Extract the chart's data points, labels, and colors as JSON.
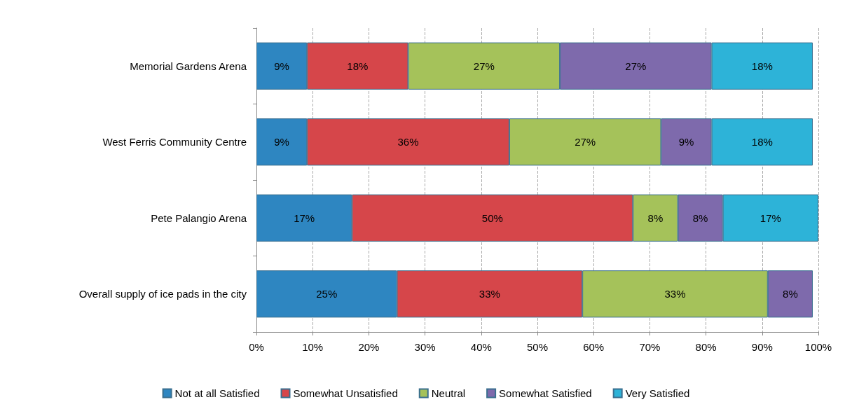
{
  "chart_data": {
    "type": "bar",
    "orientation": "horizontal",
    "stacked": true,
    "categories": [
      "Memorial Gardens Arena",
      "West Ferris Community Centre",
      "Pete Palangio Arena",
      "Overall supply of ice pads in the city"
    ],
    "series": [
      {
        "name": "Not at all Satisfied",
        "color": "#2e86c1",
        "values": [
          9,
          9,
          17,
          25
        ],
        "value_labels": [
          "9%",
          "9%",
          "17%",
          "25%"
        ]
      },
      {
        "name": "Somewhat Unsatisfied",
        "color": "#d6464a",
        "values": [
          18,
          36,
          50,
          33
        ],
        "value_labels": [
          "18%",
          "36%",
          "50%",
          "33%"
        ]
      },
      {
        "name": "Neutral",
        "color": "#a5c25a",
        "values": [
          27,
          27,
          8,
          33
        ],
        "value_labels": [
          "27%",
          "27%",
          "8%",
          "33%"
        ]
      },
      {
        "name": "Somewhat Satisfied",
        "color": "#7e6aac",
        "values": [
          27,
          9,
          8,
          8
        ],
        "value_labels": [
          "27%",
          "9%",
          "8%",
          "8%"
        ]
      },
      {
        "name": "Very Satisfied",
        "color": "#2db3d8",
        "values": [
          18,
          18,
          17,
          null
        ],
        "value_labels": [
          "18%",
          "18%",
          "17%",
          null
        ]
      }
    ],
    "xlim": [
      0,
      100
    ],
    "xticks": [
      {
        "value": 0,
        "label": "0%"
      },
      {
        "value": 10,
        "label": "10%"
      },
      {
        "value": 20,
        "label": "20%"
      },
      {
        "value": 30,
        "label": "30%"
      },
      {
        "value": 40,
        "label": "40%"
      },
      {
        "value": 50,
        "label": "50%"
      },
      {
        "value": 60,
        "label": "60%"
      },
      {
        "value": 70,
        "label": "70%"
      },
      {
        "value": 80,
        "label": "80%"
      },
      {
        "value": 90,
        "label": "90%"
      },
      {
        "value": 100,
        "label": "100%"
      }
    ],
    "grid": "x",
    "legend": "bottom"
  }
}
